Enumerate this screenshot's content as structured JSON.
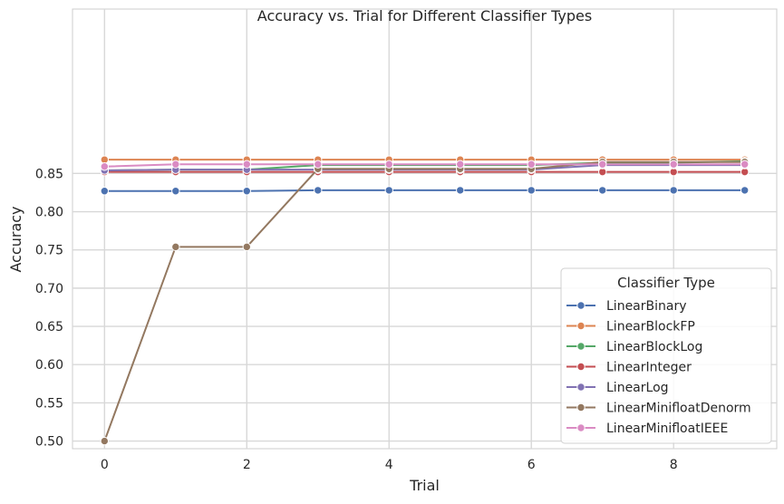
{
  "chart_data": {
    "type": "line",
    "title": "Accuracy vs. Trial for Different Classifier Types",
    "xlabel": "Trial",
    "ylabel": "Accuracy",
    "x": [
      0,
      1,
      2,
      3,
      4,
      5,
      6,
      7,
      8,
      9
    ],
    "xlim": [
      -0.45,
      9.45
    ],
    "xticks": [
      0,
      2,
      4,
      6,
      8
    ],
    "ylim": [
      0.49,
      1.065
    ],
    "yticks": [
      0.5,
      0.55,
      0.6,
      0.65,
      0.7,
      0.75,
      0.8,
      0.85
    ],
    "ytick_labels": [
      "0.50",
      "0.55",
      "0.60",
      "0.65",
      "0.70",
      "0.75",
      "0.80",
      "0.85"
    ],
    "grid": true,
    "legend": {
      "title": "Classifier Type",
      "placement": "lower-right"
    },
    "series": [
      {
        "name": "LinearBinary",
        "color": "#4c72b0",
        "values": [
          0.827,
          0.827,
          0.827,
          0.828,
          0.828,
          0.828,
          0.828,
          0.828,
          0.828,
          0.828
        ]
      },
      {
        "name": "LinearBlockFP",
        "color": "#dd8452",
        "values": [
          0.868,
          0.868,
          0.868,
          0.868,
          0.868,
          0.868,
          0.868,
          0.868,
          0.868,
          0.868
        ]
      },
      {
        "name": "LinearBlockLog",
        "color": "#55a868",
        "values": [
          0.854,
          0.855,
          0.855,
          0.861,
          0.861,
          0.861,
          0.861,
          0.864,
          0.864,
          0.866
        ]
      },
      {
        "name": "LinearInteger",
        "color": "#c44e52",
        "values": [
          0.852,
          0.852,
          0.852,
          0.852,
          0.852,
          0.852,
          0.852,
          0.852,
          0.852,
          0.852
        ]
      },
      {
        "name": "LinearLog",
        "color": "#8172b3",
        "values": [
          0.854,
          0.855,
          0.855,
          0.855,
          0.855,
          0.855,
          0.855,
          0.861,
          0.861,
          0.861
        ]
      },
      {
        "name": "LinearMinifloatDenorm",
        "color": "#937860",
        "values": [
          0.5,
          0.754,
          0.754,
          0.856,
          0.856,
          0.856,
          0.856,
          0.865,
          0.865,
          0.865
        ]
      },
      {
        "name": "LinearMinifloatIEEE",
        "color": "#da8bc3",
        "values": [
          0.859,
          0.862,
          0.862,
          0.862,
          0.862,
          0.862,
          0.862,
          0.862,
          0.862,
          0.862
        ]
      }
    ]
  }
}
